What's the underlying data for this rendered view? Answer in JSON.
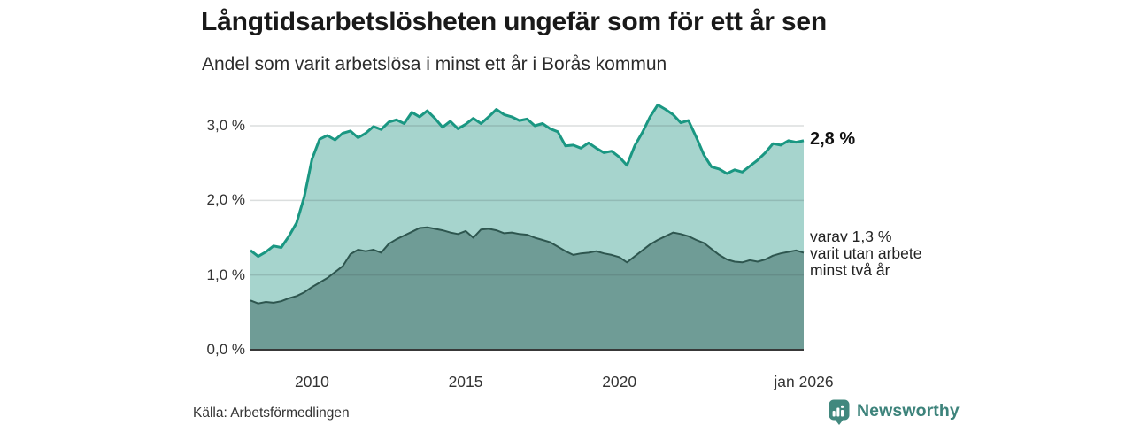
{
  "header": {
    "title": "Långtidsarbetslösheten ungefär som för ett år sen",
    "subtitle": "Andel som varit arbetslösa i minst ett år i Borås kommun"
  },
  "chart_data": {
    "type": "area",
    "title": "Långtidsarbetslösheten ungefär som för ett år sen",
    "xlabel": "",
    "ylabel": "",
    "xlim": [
      2008,
      2026
    ],
    "ylim": [
      0,
      3.4
    ],
    "grid": "horizontal",
    "legend_position": "none",
    "x_ticks": [
      {
        "label": "2010",
        "year": 2010
      },
      {
        "label": "2015",
        "year": 2015
      },
      {
        "label": "2020",
        "year": 2020
      },
      {
        "label": "jan 2026",
        "year": 2026
      }
    ],
    "y_ticks": [
      {
        "label": "0,0 %",
        "value": 0
      },
      {
        "label": "1,0 %",
        "value": 1
      },
      {
        "label": "2,0 %",
        "value": 2
      },
      {
        "label": "3,0 %",
        "value": 3
      }
    ],
    "x": [
      2008,
      2008.25,
      2008.5,
      2008.75,
      2009,
      2009.25,
      2009.5,
      2009.75,
      2010,
      2010.25,
      2010.5,
      2010.75,
      2011,
      2011.25,
      2011.5,
      2011.75,
      2012,
      2012.25,
      2012.5,
      2012.75,
      2013,
      2013.25,
      2013.5,
      2013.75,
      2014,
      2014.25,
      2014.5,
      2014.75,
      2015,
      2015.25,
      2015.5,
      2015.75,
      2016,
      2016.25,
      2016.5,
      2016.75,
      2017,
      2017.25,
      2017.5,
      2017.75,
      2018,
      2018.25,
      2018.5,
      2018.75,
      2019,
      2019.25,
      2019.5,
      2019.75,
      2020,
      2020.25,
      2020.5,
      2020.75,
      2021,
      2021.25,
      2021.5,
      2021.75,
      2022,
      2022.25,
      2022.5,
      2022.75,
      2023,
      2023.25,
      2023.5,
      2023.75,
      2024,
      2024.25,
      2024.5,
      2024.75,
      2025,
      2025.25,
      2025.5,
      2025.75,
      2026
    ],
    "series": [
      {
        "name": "Arbetslösa minst ett år",
        "line_color": "#1a9782",
        "fill_color": "#a6d4cd",
        "latest_label": "2,8 %",
        "values": [
          1.33,
          1.25,
          1.31,
          1.39,
          1.37,
          1.52,
          1.7,
          2.05,
          2.55,
          2.82,
          2.87,
          2.81,
          2.9,
          2.93,
          2.84,
          2.9,
          2.99,
          2.95,
          3.05,
          3.08,
          3.03,
          3.18,
          3.12,
          3.2,
          3.1,
          2.98,
          3.06,
          2.96,
          3.02,
          3.1,
          3.03,
          3.12,
          3.22,
          3.15,
          3.12,
          3.07,
          3.09,
          3.0,
          3.03,
          2.96,
          2.92,
          2.73,
          2.74,
          2.7,
          2.77,
          2.7,
          2.64,
          2.66,
          2.58,
          2.47,
          2.73,
          2.91,
          3.12,
          3.28,
          3.22,
          3.15,
          3.04,
          3.07,
          2.85,
          2.61,
          2.45,
          2.42,
          2.36,
          2.41,
          2.38,
          2.46,
          2.54,
          2.64,
          2.76,
          2.74,
          2.8,
          2.78,
          2.8
        ]
      },
      {
        "name": "Utan arbete minst två år",
        "line_color": "#2e564f",
        "fill_color": "#6f9c96",
        "latest_label": "1,3 %",
        "values": [
          0.66,
          0.62,
          0.64,
          0.63,
          0.65,
          0.69,
          0.72,
          0.77,
          0.84,
          0.9,
          0.96,
          1.04,
          1.12,
          1.28,
          1.34,
          1.32,
          1.34,
          1.3,
          1.42,
          1.48,
          1.53,
          1.58,
          1.63,
          1.64,
          1.62,
          1.6,
          1.57,
          1.55,
          1.59,
          1.5,
          1.61,
          1.62,
          1.6,
          1.56,
          1.57,
          1.55,
          1.54,
          1.5,
          1.47,
          1.44,
          1.38,
          1.32,
          1.27,
          1.29,
          1.3,
          1.32,
          1.29,
          1.27,
          1.24,
          1.17,
          1.25,
          1.33,
          1.41,
          1.47,
          1.52,
          1.57,
          1.55,
          1.52,
          1.47,
          1.43,
          1.35,
          1.27,
          1.21,
          1.18,
          1.17,
          1.2,
          1.18,
          1.21,
          1.26,
          1.29,
          1.31,
          1.33,
          1.3
        ]
      }
    ]
  },
  "annotations": {
    "latest_total": "2,8 %",
    "secondary_lines": [
      "varav 1,3 %",
      "varit utan arbete",
      "minst två år"
    ]
  },
  "footer": {
    "source": "Källa: Arbetsförmedlingen",
    "brand_name": "Newsworthy"
  },
  "colors": {
    "brand_teal": "#3d837b",
    "logo_fill": "#41887e",
    "gridline": "rgba(55,70,70,0.18)",
    "baseline": "#383838",
    "text": "#1a1a1a"
  }
}
